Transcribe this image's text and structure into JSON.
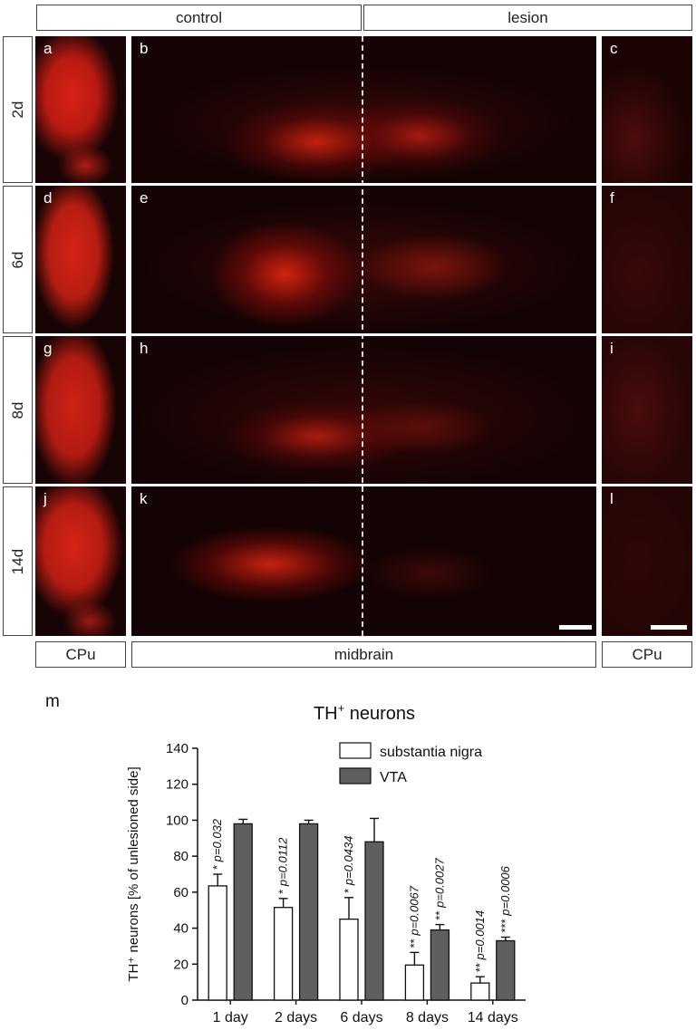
{
  "figure": {
    "col_headers": [
      "control",
      "lesion"
    ],
    "row_labels": [
      "2d",
      "6d",
      "8d",
      "14d"
    ],
    "panel_labels": [
      "a",
      "b",
      "c",
      "d",
      "e",
      "f",
      "g",
      "h",
      "i",
      "j",
      "k",
      "l"
    ],
    "bottom_labels": [
      "CPu",
      "midbrain",
      "CPu"
    ],
    "colors": {
      "stain": "#e0231b",
      "dark_bg": "#160405",
      "frame": "#444444"
    }
  },
  "chart": {
    "panel_label": "m",
    "title_main": "TH",
    "title_sup": "+",
    "title_rest": " neurons",
    "ylabel": "TH⁺ neurons [% of unlesioned side]",
    "legend": [
      "substantia nigra",
      "VTA"
    ]
  },
  "chart_data": {
    "type": "bar",
    "categories": [
      "1 day",
      "2 days",
      "6 days",
      "8 days",
      "14 days"
    ],
    "series": [
      {
        "name": "substantia nigra",
        "values": [
          63.5,
          51.5,
          45,
          19.5,
          9.5
        ],
        "errors": [
          6.5,
          5,
          12,
          7,
          3.5
        ],
        "color": "#ffffff"
      },
      {
        "name": "VTA",
        "values": [
          98,
          98,
          88,
          39,
          33
        ],
        "errors": [
          2.5,
          2,
          13,
          3,
          2
        ],
        "color": "#5f5f5f"
      }
    ],
    "annotations": [
      [
        "* p=0.032",
        ""
      ],
      [
        "* p=0.0112",
        ""
      ],
      [
        "* p=0.0434",
        ""
      ],
      [
        "** p=0.0067",
        "** p=0.0027"
      ],
      [
        "** p=0.0014",
        "*** p=0.0006"
      ]
    ],
    "ylim": [
      0,
      140
    ],
    "yticks": [
      0,
      20,
      40,
      60,
      80,
      100,
      120,
      140
    ],
    "legend_position": "top-right"
  }
}
